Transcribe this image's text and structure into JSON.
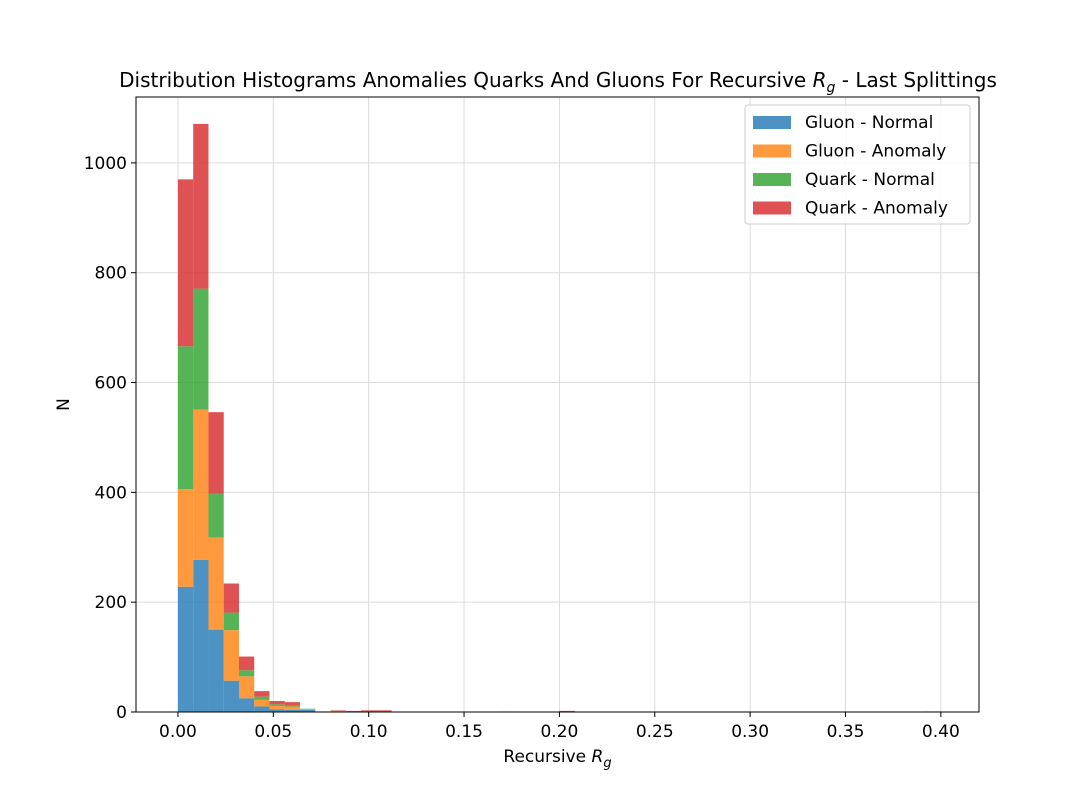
{
  "chart_data": {
    "type": "bar",
    "stacked": true,
    "title_parts": [
      "Distribution Histograms Anomalies Quarks And Gluons For Recursive ",
      "R",
      "g",
      " - Last Splittings"
    ],
    "xlabel_parts": [
      "Recursive ",
      "R",
      "g"
    ],
    "ylabel": "N",
    "xlim": [
      -0.022,
      0.42
    ],
    "ylim": [
      0,
      1120
    ],
    "xticks": [
      0.0,
      0.05,
      0.1,
      0.15,
      0.2,
      0.25,
      0.3,
      0.35,
      0.4
    ],
    "xtick_labels": [
      "0.00",
      "0.05",
      "0.10",
      "0.15",
      "0.20",
      "0.25",
      "0.30",
      "0.35",
      "0.40"
    ],
    "yticks": [
      0,
      200,
      400,
      600,
      800,
      1000
    ],
    "ytick_labels": [
      "0",
      "200",
      "400",
      "600",
      "800",
      "1000"
    ],
    "grid": true,
    "legend_position": "top-right",
    "bin_width": 0.008,
    "bins": [
      0.0,
      0.008,
      0.016,
      0.024,
      0.032,
      0.04,
      0.048,
      0.056,
      0.064,
      0.072,
      0.08,
      0.088,
      0.096,
      0.104,
      0.168,
      0.2,
      0.392
    ],
    "series": [
      {
        "name": "Gluon - Normal",
        "color": "#1f77b4",
        "values": [
          228,
          277,
          150,
          57,
          25,
          10,
          5,
          4,
          4,
          1,
          1,
          0,
          1,
          0,
          0,
          0,
          0
        ]
      },
      {
        "name": "Gluon - Anomaly",
        "color": "#ff7f0e",
        "values": [
          178,
          274,
          168,
          92,
          40,
          12,
          6,
          6,
          1,
          0,
          1,
          1,
          0,
          0,
          1,
          0,
          0
        ]
      },
      {
        "name": "Quark - Normal",
        "color": "#2ca02c",
        "values": [
          260,
          220,
          80,
          32,
          11,
          6,
          3,
          2,
          1,
          0,
          0,
          0,
          0,
          1,
          0,
          0,
          0
        ]
      },
      {
        "name": "Quark - Anomaly",
        "color": "#d62728",
        "values": [
          304,
          300,
          148,
          53,
          25,
          10,
          6,
          6,
          0,
          0,
          1,
          1,
          2,
          2,
          0,
          2,
          1
        ]
      }
    ]
  }
}
